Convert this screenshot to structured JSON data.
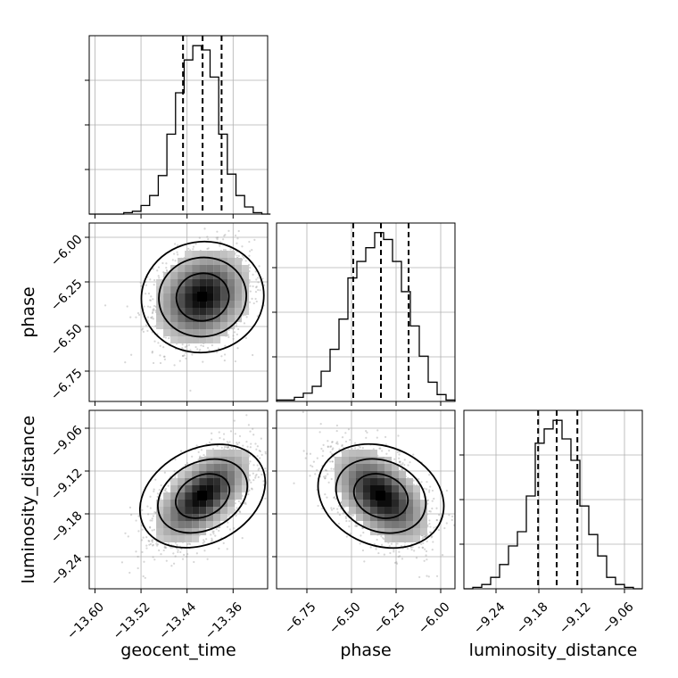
{
  "chart_data": {
    "type": "corner",
    "parameters": [
      "geocent_time",
      "phase",
      "luminosity_distance"
    ],
    "axis_labels": {
      "geocent_time": "geocent_time",
      "phase": "phase",
      "luminosity_distance": "luminosity_distance"
    },
    "ranges": {
      "geocent_time": [
        -13.61,
        -13.3
      ],
      "phase": [
        -6.92,
        -5.92
      ],
      "luminosity_distance": [
        -9.285,
        -9.035
      ]
    },
    "ticks": {
      "geocent_time": [
        {
          "v": -13.6,
          "t": "−13.60"
        },
        {
          "v": -13.52,
          "t": "−13.52"
        },
        {
          "v": -13.44,
          "t": "−13.44"
        },
        {
          "v": -13.36,
          "t": "−13.36"
        }
      ],
      "phase": [
        {
          "v": -6.75,
          "t": "−6.75"
        },
        {
          "v": -6.5,
          "t": "−6.50"
        },
        {
          "v": -6.25,
          "t": "−6.25"
        },
        {
          "v": -6.0,
          "t": "−6.00"
        }
      ],
      "luminosity_distance": [
        {
          "v": -9.24,
          "t": "−9.24"
        },
        {
          "v": -9.18,
          "t": "−9.18"
        },
        {
          "v": -9.12,
          "t": "−9.12"
        },
        {
          "v": -9.06,
          "t": "−9.06"
        }
      ]
    },
    "quantiles": {
      "geocent_time": [
        -13.447,
        -13.413,
        -13.38
      ],
      "phase": [
        -6.49,
        -6.335,
        -6.18
      ],
      "luminosity_distance": [
        -9.181,
        -9.155,
        -9.126
      ]
    },
    "histograms": {
      "geocent_time": {
        "bins": [
          -13.61,
          -13.595,
          -13.58,
          -13.565,
          -13.55,
          -13.535,
          -13.52,
          -13.505,
          -13.49,
          -13.475,
          -13.46,
          -13.445,
          -13.43,
          -13.415,
          -13.4,
          -13.385,
          -13.37,
          -13.355,
          -13.34,
          -13.325,
          -13.31,
          -13.295
        ],
        "counts": [
          0,
          0,
          0,
          0,
          1,
          2,
          6,
          13,
          27,
          56,
          85,
          108,
          118,
          115,
          96,
          56,
          28,
          13,
          5,
          1,
          0
        ]
      },
      "phase": {
        "bins": [
          -6.92,
          -6.87,
          -6.82,
          -6.77,
          -6.72,
          -6.67,
          -6.62,
          -6.57,
          -6.52,
          -6.47,
          -6.42,
          -6.37,
          -6.32,
          -6.27,
          -6.22,
          -6.17,
          -6.12,
          -6.07,
          -6.02,
          -5.97,
          -5.92
        ],
        "counts": [
          1,
          1,
          3,
          6,
          11,
          22,
          38,
          60,
          90,
          102,
          112,
          123,
          118,
          102,
          80,
          55,
          33,
          14,
          5,
          1
        ]
      },
      "luminosity_distance": {
        "bins": [
          -9.285,
          -9.2725,
          -9.26,
          -9.2475,
          -9.235,
          -9.2225,
          -9.21,
          -9.1975,
          -9.185,
          -9.1725,
          -9.16,
          -9.1475,
          -9.135,
          -9.1225,
          -9.11,
          -9.0975,
          -9.085,
          -9.0725,
          -9.06,
          -9.0475,
          -9.035
        ],
        "counts": [
          0,
          1,
          3,
          8,
          17,
          30,
          40,
          65,
          102,
          112,
          118,
          105,
          90,
          58,
          38,
          23,
          8,
          3,
          1,
          0
        ]
      }
    },
    "pairs": [
      {
        "x": "geocent_time",
        "y": "phase",
        "x_center": -13.413,
        "y_center": -6.335,
        "correlation": 0.2
      },
      {
        "x": "geocent_time",
        "y": "luminosity_distance",
        "x_center": -13.413,
        "y_center": -9.155,
        "correlation": 0.6
      },
      {
        "x": "phase",
        "y": "luminosity_distance",
        "x_center": -6.335,
        "y_center": -9.155,
        "correlation": -0.5
      }
    ],
    "grid": true,
    "title": "",
    "legend": "none"
  }
}
